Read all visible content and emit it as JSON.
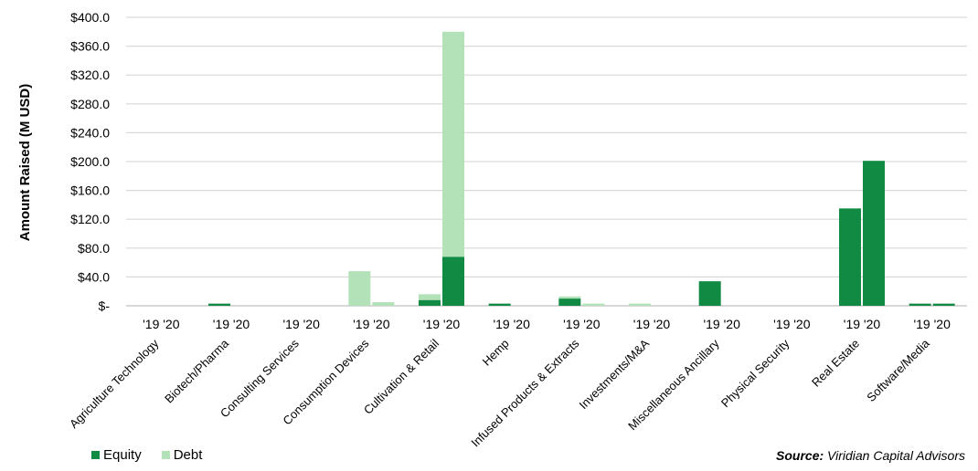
{
  "chart_data": {
    "type": "bar",
    "stacked": true,
    "ylabel": "Amount Raised (M USD)",
    "ylim": [
      0,
      400
    ],
    "yticks": [
      0,
      40,
      80,
      120,
      160,
      200,
      240,
      280,
      320,
      360,
      400
    ],
    "ytick_labels": [
      "$-",
      "$40.0",
      "$80.0",
      "$120.0",
      "$160.0",
      "$200.0",
      "$240.0",
      "$280.0",
      "$320.0",
      "$360.0",
      "$400.0"
    ],
    "grid": true,
    "legend_position": "bottom-left",
    "years": [
      "'19",
      "'20"
    ],
    "categories": [
      "Agriculture Technology",
      "Biotech/Pharma",
      "Consulting Services",
      "Consumption Devices",
      "Cultivation & Retail",
      "Hemp",
      "Infused Products & Extracts",
      "Investments/M&A",
      "Miscellaneous Ancillary",
      "Physical Security",
      "Real Estate",
      "Software/Media"
    ],
    "series": [
      {
        "name": "Equity",
        "color": "#118a44",
        "values_2019": [
          0,
          3,
          0,
          0,
          8,
          3,
          10,
          0,
          34,
          0,
          135,
          3
        ],
        "values_2020": [
          0,
          0,
          0,
          0,
          68,
          0,
          0,
          0,
          0,
          0,
          201,
          3
        ]
      },
      {
        "name": "Debt",
        "color": "#b3e2b8",
        "values_2019": [
          0,
          0,
          0,
          48,
          8,
          0,
          3,
          3,
          0,
          0,
          0,
          0
        ],
        "values_2020": [
          0,
          0,
          0,
          5,
          312,
          0,
          3,
          0,
          0,
          0,
          0,
          0
        ]
      }
    ]
  },
  "legend": {
    "equity_label": "Equity",
    "debt_label": "Debt"
  },
  "source": {
    "prefix": "Source:",
    "text": " Viridian Capital Advisors"
  }
}
